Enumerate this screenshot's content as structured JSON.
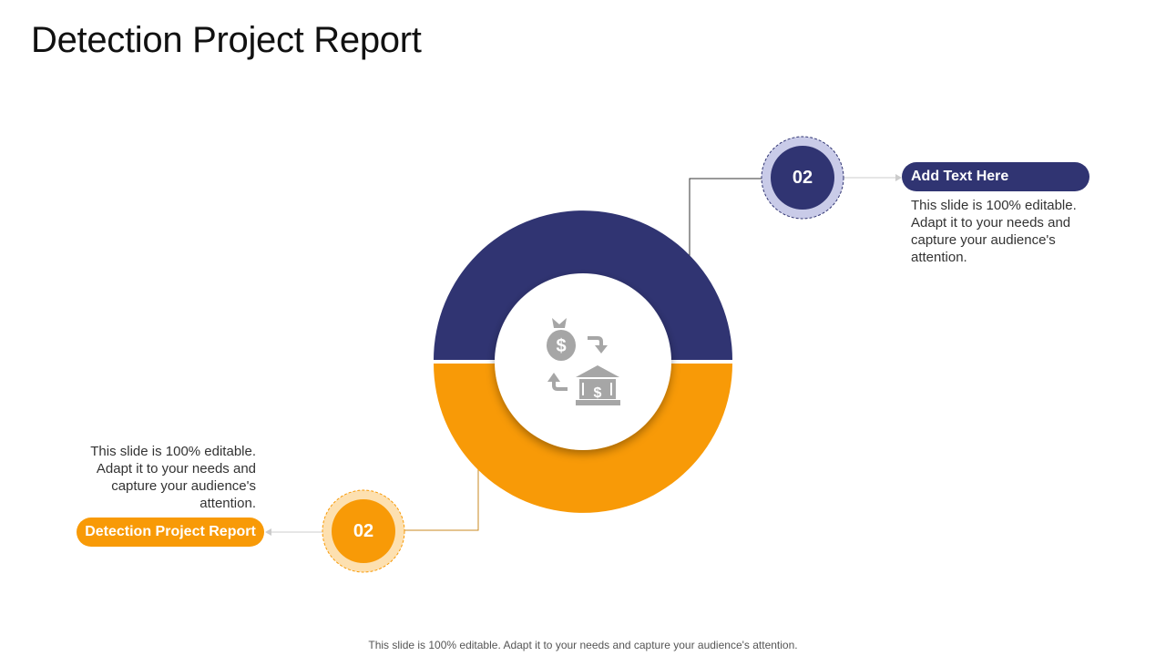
{
  "title": "Detection Project Report",
  "colors": {
    "navy": "#303472",
    "orange": "#f89a07",
    "icon_gray": "#a6a6a6"
  },
  "diagram": {
    "center_icon": "money-bank-exchange-icon",
    "segments": [
      {
        "name": "top",
        "color": "#303472"
      },
      {
        "name": "bottom",
        "color": "#f89a07"
      }
    ]
  },
  "callouts": [
    {
      "number": "02",
      "label": "Add Text Here",
      "description": "This slide is 100% editable. Adapt it to your needs and capture your audience's attention.",
      "color": "#303472"
    },
    {
      "number": "02",
      "label": "Detection Project Report",
      "description": "This slide is 100% editable. Adapt it to your needs and capture your audience's attention.",
      "color": "#f89a07"
    }
  ],
  "footer": "This slide is 100% editable. Adapt it to your needs and capture your audience's attention."
}
